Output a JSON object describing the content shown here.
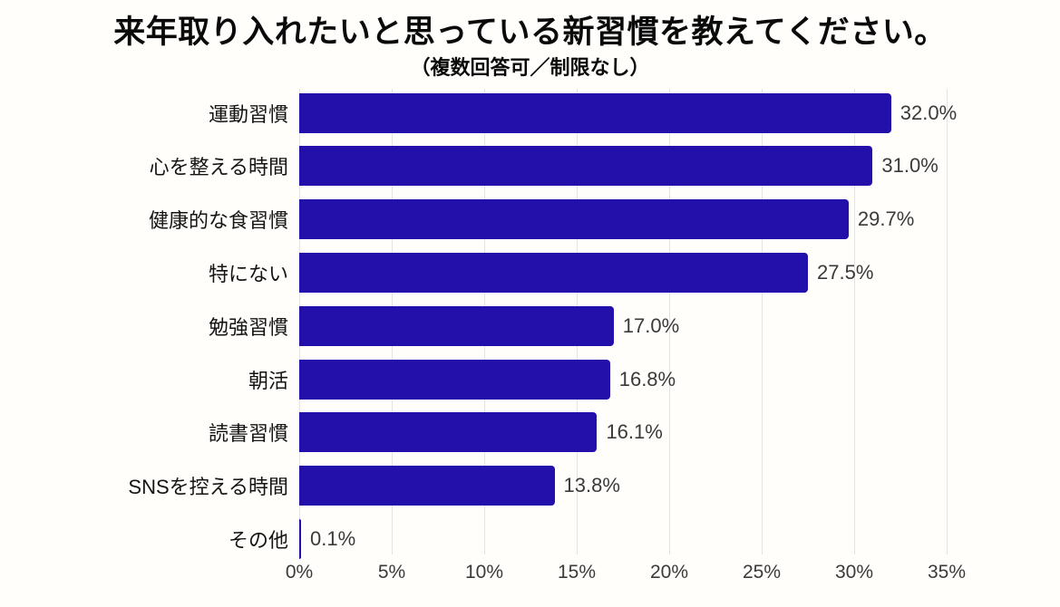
{
  "header": {
    "title": "来年取り入れたいと思っている新習慣を教えてください。",
    "subtitle": "（複数回答可／制限なし）"
  },
  "chart_data": {
    "type": "bar",
    "orientation": "horizontal",
    "title": "来年取り入れたいと思っている新習慣を教えてください。",
    "subtitle": "（複数回答可／制限なし）",
    "categories": [
      "運動習慣",
      "心を整える時間",
      "健康的な食習慣",
      "特にない",
      "勉強習慣",
      "朝活",
      "読書習慣",
      "SNSを控える時間",
      "その他"
    ],
    "values": [
      32.0,
      31.0,
      29.7,
      27.5,
      17.0,
      16.8,
      16.1,
      13.8,
      0.1
    ],
    "value_labels": [
      "32.0%",
      "31.0%",
      "29.7%",
      "27.5%",
      "17.0%",
      "16.8%",
      "16.1%",
      "13.8%",
      "0.1%"
    ],
    "xlabel": "",
    "ylabel": "",
    "xlim": [
      0,
      35
    ],
    "x_tick_values": [
      0,
      5,
      10,
      15,
      20,
      25,
      30,
      35
    ],
    "x_tick_labels": [
      "0%",
      "5%",
      "10%",
      "15%",
      "20%",
      "25%",
      "30%",
      "35%"
    ],
    "grid": true,
    "legend": false,
    "colors": {
      "bar": "#2310ab",
      "gridline": "#e3e3e3",
      "value_text": "#3a3a3a",
      "category_text": "#141414",
      "title_text": "#0a0a0a",
      "background": "#fffefb"
    }
  }
}
